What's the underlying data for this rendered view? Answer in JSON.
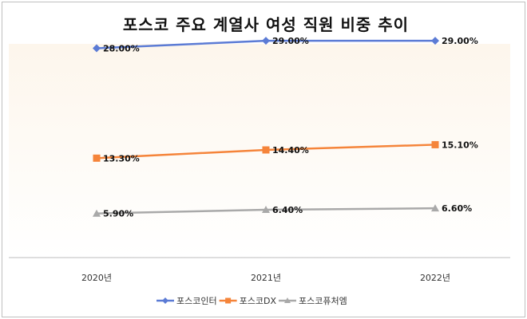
{
  "chart_data": {
    "type": "line",
    "title": "포스코 주요 계열사 여성 직원 비중 추이",
    "xlabel": "",
    "ylabel": "",
    "categories": [
      "2020년",
      "2021년",
      "2022년"
    ],
    "ylim": [
      0,
      32
    ],
    "grid": false,
    "legend_position": "bottom",
    "series": [
      {
        "name": "포스코인터",
        "values": [
          28.0,
          29.0,
          29.0
        ],
        "labels": [
          "28.00%",
          "29.00%",
          "29.00%"
        ],
        "color": "#5b7bd5",
        "marker": "diamond"
      },
      {
        "name": "포스코DX",
        "values": [
          13.3,
          14.4,
          15.1
        ],
        "labels": [
          "13.30%",
          "14.40%",
          "15.10%"
        ],
        "color": "#f5843a",
        "marker": "square"
      },
      {
        "name": "포스코퓨처엠",
        "values": [
          5.9,
          6.4,
          6.6
        ],
        "labels": [
          "5.90%",
          "6.40%",
          "6.60%"
        ],
        "color": "#a9a9a9",
        "marker": "triangle"
      }
    ]
  },
  "colors": {
    "background_top": "#fdf6ec",
    "background_bottom": "#ffffff"
  }
}
